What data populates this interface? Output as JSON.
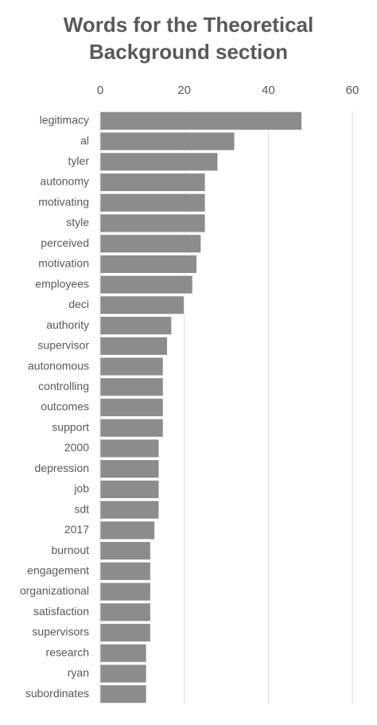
{
  "chart_data": {
    "type": "bar",
    "orientation": "horizontal",
    "title": "Words for the Theoretical Background section",
    "categories": [
      "legitimacy",
      "al",
      "tyler",
      "autonomy",
      "motivating",
      "style",
      "perceived",
      "motivation",
      "employees",
      "deci",
      "authority",
      "supervisor",
      "autonomous",
      "controlling",
      "outcomes",
      "support",
      "2000",
      "depression",
      "job",
      "sdt",
      "2017",
      "burnout",
      "engagement",
      "organizational",
      "satisfaction",
      "supervisors",
      "research",
      "ryan",
      "subordinates"
    ],
    "values": [
      48,
      32,
      28,
      25,
      25,
      25,
      24,
      23,
      22,
      20,
      17,
      16,
      15,
      15,
      15,
      15,
      14,
      14,
      14,
      14,
      13,
      12,
      12,
      12,
      12,
      12,
      11,
      11,
      11
    ],
    "color": "#8c8c8c",
    "xlim": [
      0,
      60
    ],
    "xticks": [
      0,
      20,
      40,
      60
    ],
    "grid": true
  }
}
